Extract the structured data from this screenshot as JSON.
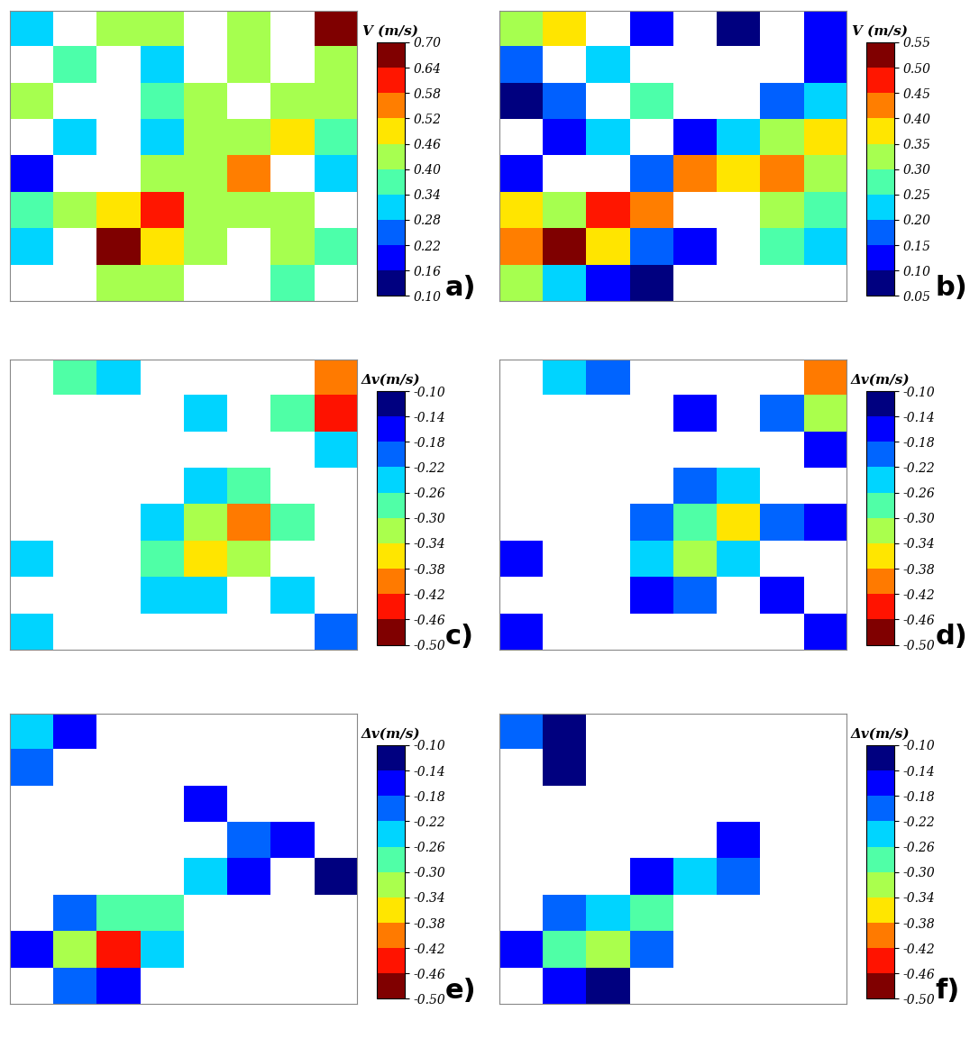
{
  "chart_data": [
    {
      "type": "heatmap",
      "panel": "a)",
      "tick_labels": false,
      "color": "jet",
      "colorbar_label": "V (m/s)",
      "colorbar_range": [
        0.1,
        0.7
      ],
      "colorbar_ticks": [
        {
          "value": 0.1,
          "label": "0.10"
        },
        {
          "value": 0.16,
          "label": "0.16"
        },
        {
          "value": 0.22,
          "label": "0.22"
        },
        {
          "value": 0.28,
          "label": "0.28"
        },
        {
          "value": 0.34,
          "label": "0.34"
        },
        {
          "value": 0.4,
          "label": "0.40"
        },
        {
          "value": 0.46,
          "label": "0.46"
        },
        {
          "value": 0.52,
          "label": "0.52"
        },
        {
          "value": 0.58,
          "label": "0.58"
        },
        {
          "value": 0.64,
          "label": "0.64"
        },
        {
          "value": 0.7,
          "label": "0.70"
        }
      ],
      "cells": [
        [
          0.3,
          null,
          0.4,
          0.45,
          null,
          0.4,
          null,
          0.65
        ],
        [
          null,
          0.35,
          null,
          0.3,
          null,
          0.45,
          null,
          0.45
        ],
        [
          0.4,
          null,
          null,
          0.35,
          0.45,
          null,
          0.4,
          0.4
        ],
        [
          null,
          0.3,
          null,
          0.3,
          0.4,
          0.45,
          0.5,
          0.35
        ],
        [
          0.2,
          null,
          null,
          0.45,
          0.4,
          0.55,
          null,
          0.3
        ],
        [
          0.35,
          0.4,
          0.5,
          0.6,
          0.45,
          0.45,
          0.4,
          null
        ],
        [
          0.3,
          null,
          0.7,
          0.5,
          0.45,
          null,
          0.4,
          0.35
        ],
        [
          null,
          null,
          0.45,
          0.4,
          null,
          null,
          0.35,
          null
        ]
      ]
    },
    {
      "type": "heatmap",
      "panel": "b)",
      "tick_labels": false,
      "color": "jet",
      "colorbar_label": "V (m/s)",
      "colorbar_range": [
        0.05,
        0.55
      ],
      "colorbar_ticks": [
        {
          "value": 0.05,
          "label": "0.05"
        },
        {
          "value": 0.1,
          "label": "0.10"
        },
        {
          "value": 0.15,
          "label": "0.15"
        },
        {
          "value": 0.2,
          "label": "0.20"
        },
        {
          "value": 0.25,
          "label": "0.25"
        },
        {
          "value": 0.3,
          "label": "0.30"
        },
        {
          "value": 0.35,
          "label": "0.35"
        },
        {
          "value": 0.4,
          "label": "0.40"
        },
        {
          "value": 0.45,
          "label": "0.45"
        },
        {
          "value": 0.5,
          "label": "0.50"
        },
        {
          "value": 0.55,
          "label": "0.55"
        }
      ],
      "cells": [
        [
          0.3,
          0.35,
          null,
          0.1,
          null,
          0.05,
          null,
          0.1
        ],
        [
          0.15,
          null,
          0.2,
          null,
          null,
          null,
          null,
          0.1
        ],
        [
          0.05,
          0.15,
          null,
          0.25,
          null,
          null,
          0.15,
          0.2
        ],
        [
          null,
          0.1,
          0.2,
          null,
          0.1,
          0.2,
          0.3,
          0.35
        ],
        [
          0.1,
          null,
          null,
          0.15,
          0.4,
          0.35,
          0.4,
          0.3
        ],
        [
          0.35,
          0.3,
          0.45,
          0.4,
          null,
          null,
          0.3,
          0.25
        ],
        [
          0.4,
          0.55,
          0.35,
          0.15,
          0.1,
          null,
          0.25,
          0.2
        ],
        [
          0.3,
          0.2,
          0.1,
          0.05,
          null,
          null,
          null,
          null
        ]
      ]
    },
    {
      "type": "heatmap",
      "panel": "c)",
      "tick_labels": false,
      "color": "jet_r",
      "colorbar_label": "Δv(m/s)",
      "colorbar_range": [
        -0.5,
        -0.1
      ],
      "colorbar_ticks": [
        {
          "value": -0.1,
          "label": "-0.10"
        },
        {
          "value": -0.14,
          "label": "-0.14"
        },
        {
          "value": -0.18,
          "label": "-0.18"
        },
        {
          "value": -0.22,
          "label": "-0.22"
        },
        {
          "value": -0.26,
          "label": "-0.26"
        },
        {
          "value": -0.3,
          "label": "-0.30"
        },
        {
          "value": -0.34,
          "label": "-0.34"
        },
        {
          "value": -0.38,
          "label": "-0.38"
        },
        {
          "value": -0.42,
          "label": "-0.42"
        },
        {
          "value": -0.46,
          "label": "-0.46"
        },
        {
          "value": -0.5,
          "label": "-0.50"
        }
      ],
      "cells": [
        [
          null,
          -0.3,
          -0.26,
          null,
          null,
          null,
          null,
          -0.4
        ],
        [
          null,
          null,
          null,
          null,
          -0.26,
          null,
          -0.3,
          -0.46
        ],
        [
          null,
          null,
          null,
          null,
          null,
          null,
          null,
          -0.26
        ],
        [
          null,
          null,
          null,
          null,
          -0.26,
          -0.3,
          null,
          null
        ],
        [
          null,
          null,
          null,
          -0.26,
          -0.34,
          -0.42,
          -0.3,
          null
        ],
        [
          -0.26,
          null,
          null,
          -0.3,
          -0.38,
          -0.34,
          null,
          null
        ],
        [
          null,
          null,
          null,
          -0.26,
          -0.26,
          null,
          -0.26,
          null
        ],
        [
          -0.26,
          null,
          null,
          null,
          null,
          null,
          null,
          -0.22
        ]
      ]
    },
    {
      "type": "heatmap",
      "panel": "d)",
      "tick_labels": false,
      "color": "jet_r",
      "colorbar_label": "Δv(m/s)",
      "colorbar_range": [
        -0.5,
        -0.1
      ],
      "colorbar_ticks": [
        {
          "value": -0.1,
          "label": "-0.10"
        },
        {
          "value": -0.14,
          "label": "-0.14"
        },
        {
          "value": -0.18,
          "label": "-0.18"
        },
        {
          "value": -0.22,
          "label": "-0.22"
        },
        {
          "value": -0.26,
          "label": "-0.26"
        },
        {
          "value": -0.3,
          "label": "-0.30"
        },
        {
          "value": -0.34,
          "label": "-0.34"
        },
        {
          "value": -0.38,
          "label": "-0.38"
        },
        {
          "value": -0.42,
          "label": "-0.42"
        },
        {
          "value": -0.46,
          "label": "-0.46"
        },
        {
          "value": -0.5,
          "label": "-0.50"
        }
      ],
      "cells": [
        [
          null,
          -0.26,
          -0.22,
          null,
          null,
          null,
          null,
          -0.42
        ],
        [
          null,
          null,
          null,
          null,
          -0.18,
          null,
          -0.22,
          -0.34
        ],
        [
          null,
          null,
          null,
          null,
          null,
          null,
          null,
          -0.18
        ],
        [
          null,
          null,
          null,
          null,
          -0.22,
          -0.26,
          null,
          null
        ],
        [
          null,
          null,
          null,
          -0.22,
          -0.3,
          -0.38,
          -0.22,
          -0.18
        ],
        [
          -0.18,
          null,
          null,
          -0.26,
          -0.34,
          -0.26,
          null,
          null
        ],
        [
          null,
          null,
          null,
          -0.18,
          -0.22,
          null,
          -0.18,
          null
        ],
        [
          -0.18,
          null,
          null,
          null,
          null,
          null,
          null,
          -0.18
        ]
      ]
    },
    {
      "type": "heatmap",
      "panel": "e)",
      "tick_labels": false,
      "color": "jet_r",
      "colorbar_label": "Δv(m/s)",
      "colorbar_range": [
        -0.5,
        -0.1
      ],
      "colorbar_ticks": [
        {
          "value": -0.1,
          "label": "-0.10"
        },
        {
          "value": -0.14,
          "label": "-0.14"
        },
        {
          "value": -0.18,
          "label": "-0.18"
        },
        {
          "value": -0.22,
          "label": "-0.22"
        },
        {
          "value": -0.26,
          "label": "-0.26"
        },
        {
          "value": -0.3,
          "label": "-0.30"
        },
        {
          "value": -0.34,
          "label": "-0.34"
        },
        {
          "value": -0.38,
          "label": "-0.38"
        },
        {
          "value": -0.42,
          "label": "-0.42"
        },
        {
          "value": -0.46,
          "label": "-0.46"
        },
        {
          "value": -0.5,
          "label": "-0.50"
        }
      ],
      "cells": [
        [
          -0.26,
          -0.18,
          null,
          null,
          null,
          null,
          null,
          null
        ],
        [
          -0.22,
          null,
          null,
          null,
          null,
          null,
          null,
          null
        ],
        [
          null,
          null,
          null,
          null,
          -0.18,
          null,
          null,
          null
        ],
        [
          null,
          null,
          null,
          null,
          null,
          -0.22,
          -0.18,
          null
        ],
        [
          null,
          null,
          null,
          null,
          -0.26,
          -0.18,
          null,
          -0.14
        ],
        [
          null,
          -0.22,
          -0.3,
          -0.3,
          null,
          null,
          null,
          null
        ],
        [
          -0.18,
          -0.34,
          -0.46,
          -0.26,
          null,
          null,
          null,
          null
        ],
        [
          null,
          -0.22,
          -0.18,
          null,
          null,
          null,
          null,
          null
        ]
      ]
    },
    {
      "type": "heatmap",
      "panel": "f)",
      "tick_labels": false,
      "color": "jet_r",
      "colorbar_label": "Δv(m/s)",
      "colorbar_range": [
        -0.5,
        -0.1
      ],
      "colorbar_ticks": [
        {
          "value": -0.1,
          "label": "-0.10"
        },
        {
          "value": -0.14,
          "label": "-0.14"
        },
        {
          "value": -0.18,
          "label": "-0.18"
        },
        {
          "value": -0.22,
          "label": "-0.22"
        },
        {
          "value": -0.26,
          "label": "-0.26"
        },
        {
          "value": -0.3,
          "label": "-0.30"
        },
        {
          "value": -0.34,
          "label": "-0.34"
        },
        {
          "value": -0.38,
          "label": "-0.38"
        },
        {
          "value": -0.42,
          "label": "-0.42"
        },
        {
          "value": -0.46,
          "label": "-0.46"
        },
        {
          "value": -0.5,
          "label": "-0.50"
        }
      ],
      "cells": [
        [
          -0.22,
          -0.14,
          null,
          null,
          null,
          null,
          null,
          null
        ],
        [
          null,
          -0.14,
          null,
          null,
          null,
          null,
          null,
          null
        ],
        [
          null,
          null,
          null,
          null,
          null,
          null,
          null,
          null
        ],
        [
          null,
          null,
          null,
          null,
          null,
          -0.18,
          null,
          null
        ],
        [
          null,
          null,
          null,
          -0.18,
          -0.26,
          -0.22,
          null,
          null
        ],
        [
          null,
          -0.22,
          -0.26,
          -0.3,
          null,
          null,
          null,
          null
        ],
        [
          -0.18,
          -0.3,
          -0.34,
          -0.22,
          null,
          null,
          null,
          null
        ],
        [
          null,
          -0.18,
          -0.14,
          null,
          null,
          null,
          null,
          null
        ]
      ]
    }
  ]
}
